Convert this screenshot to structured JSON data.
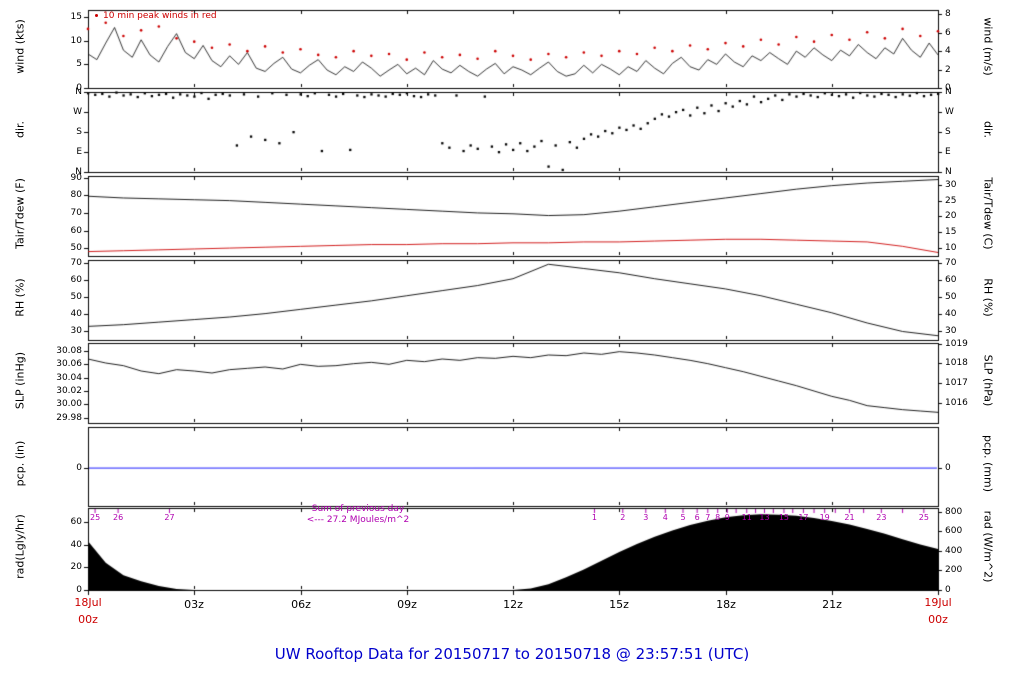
{
  "title": "UW Rooftop Data for 20150717  to  20150718 @ 23:57:51  (UTC)",
  "annotations": {
    "peak_note": "10 min peak winds in red",
    "sum_prev_line1": "Sum of previous day",
    "sum_prev_line2": "<--- 27.2 MJoules/m^2"
  },
  "x_axis": {
    "ticks": [
      "03z",
      "06z",
      "09z",
      "12z",
      "15z",
      "18z",
      "21z"
    ],
    "start_day": "18Jul",
    "start_hour": "00z",
    "end_day": "19Jul",
    "end_hour": "00z"
  },
  "colors": {
    "trace": "#000000",
    "peak_red": "#cc0000",
    "tdew_red": "#cc0000",
    "pcp_blue": "#0000ff",
    "rad_fill": "#000000",
    "marks_magenta": "#b000b0",
    "title_blue": "#0000cc",
    "date_red": "#cc0000"
  },
  "chart_data": {
    "type": "line",
    "x_range_hours": [
      0,
      24
    ],
    "panels": [
      {
        "name": "wind",
        "left_label": "wind (kts)",
        "right_label": "wind (m/s)",
        "ylim": [
          0,
          16.5
        ],
        "left_ticks": [
          {
            "v": 0,
            "label": "0"
          },
          {
            "v": 5,
            "label": "5"
          },
          {
            "v": 10,
            "label": "10"
          },
          {
            "v": 15,
            "label": "15"
          }
        ],
        "right_ticks": [
          {
            "v": 0,
            "label": "0"
          },
          {
            "v": 3.89,
            "label": "2"
          },
          {
            "v": 7.78,
            "label": "4"
          },
          {
            "v": 11.66,
            "label": "6"
          },
          {
            "v": 15.55,
            "label": "8"
          }
        ]
      },
      {
        "name": "dir",
        "left_label": "dir.",
        "right_label": "dir.",
        "ylim": [
          0,
          360
        ],
        "left_ticks": [
          {
            "v": 0,
            "label": "N"
          },
          {
            "v": 90,
            "label": "E"
          },
          {
            "v": 180,
            "label": "S"
          },
          {
            "v": 270,
            "label": "W"
          },
          {
            "v": 360,
            "label": "N"
          }
        ],
        "right_ticks": [
          {
            "v": 0,
            "label": "N"
          },
          {
            "v": 90,
            "label": "E"
          },
          {
            "v": 180,
            "label": "S"
          },
          {
            "v": 270,
            "label": "W"
          },
          {
            "v": 360,
            "label": "N"
          }
        ]
      },
      {
        "name": "temp",
        "left_label": "Tair/Tdew (F)",
        "right_label": "Tair/Tdew (C)",
        "ylim": [
          45.5,
          91
        ],
        "left_ticks": [
          {
            "v": 50,
            "label": "50"
          },
          {
            "v": 60,
            "label": "60"
          },
          {
            "v": 70,
            "label": "70"
          },
          {
            "v": 80,
            "label": "80"
          },
          {
            "v": 90,
            "label": "90"
          }
        ],
        "right_ticks": [
          {
            "v": 50,
            "label": "10"
          },
          {
            "v": 59,
            "label": "15"
          },
          {
            "v": 68,
            "label": "20"
          },
          {
            "v": 77,
            "label": "25"
          },
          {
            "v": 86,
            "label": "30"
          }
        ]
      },
      {
        "name": "rh",
        "left_label": "RH (%)",
        "right_label": "RH (%)",
        "ylim": [
          25,
          72
        ],
        "left_ticks": [
          {
            "v": 30,
            "label": "30"
          },
          {
            "v": 40,
            "label": "40"
          },
          {
            "v": 50,
            "label": "50"
          },
          {
            "v": 60,
            "label": "60"
          },
          {
            "v": 70,
            "label": "70"
          }
        ],
        "right_ticks": [
          {
            "v": 30,
            "label": "30"
          },
          {
            "v": 40,
            "label": "40"
          },
          {
            "v": 50,
            "label": "50"
          },
          {
            "v": 60,
            "label": "60"
          },
          {
            "v": 70,
            "label": "70"
          }
        ]
      },
      {
        "name": "slp",
        "left_label": "SLP (inHg)",
        "right_label": "SLP (hPa)",
        "ylim": [
          29.972,
          30.092
        ],
        "left_ticks": [
          {
            "v": 29.98,
            "label": "29.98"
          },
          {
            "v": 30.0,
            "label": "30.00"
          },
          {
            "v": 30.02,
            "label": "30.02"
          },
          {
            "v": 30.04,
            "label": "30.04"
          },
          {
            "v": 30.06,
            "label": "30.06"
          },
          {
            "v": 30.08,
            "label": "30.08"
          }
        ],
        "right_ticks": [
          {
            "v": 30.0025,
            "label": "1016"
          },
          {
            "v": 30.032,
            "label": "1017"
          },
          {
            "v": 30.0615,
            "label": "1018"
          },
          {
            "v": 30.0911,
            "label": "1019"
          }
        ]
      },
      {
        "name": "pcp",
        "left_label": "pcp. (in)",
        "right_label": "pcp. (mm)",
        "ylim": [
          -0.48,
          0.52
        ],
        "left_ticks": [
          {
            "v": 0,
            "label": "0"
          }
        ],
        "right_ticks": [
          {
            "v": 0,
            "label": "0"
          }
        ]
      },
      {
        "name": "rad",
        "left_label": "rad(Lgly/hr)",
        "right_label": "rad (W/m^2)",
        "ylim": [
          0,
          840
        ],
        "left_ticks": [
          {
            "v": 0,
            "label": "0"
          },
          {
            "v": 232.6,
            "label": "20"
          },
          {
            "v": 465.2,
            "label": "40"
          },
          {
            "v": 697.8,
            "label": "60"
          }
        ],
        "right_ticks": [
          {
            "v": 0,
            "label": "0"
          },
          {
            "v": 200,
            "label": "200"
          },
          {
            "v": 400,
            "label": "400"
          },
          {
            "v": 600,
            "label": "600"
          },
          {
            "v": 800,
            "label": "800"
          }
        ]
      }
    ],
    "series": {
      "wind_speed_kts": {
        "t0": 0,
        "dt": 0.25,
        "values": [
          7.2,
          6.0,
          9.5,
          12.8,
          8.0,
          6.5,
          10.2,
          7.0,
          5.5,
          8.8,
          11.5,
          7.5,
          6.2,
          9.0,
          5.8,
          4.5,
          6.8,
          5.0,
          7.5,
          4.2,
          3.5,
          5.2,
          6.5,
          4.0,
          3.2,
          4.8,
          6.0,
          3.8,
          2.8,
          4.5,
          3.5,
          5.5,
          4.2,
          2.5,
          3.8,
          5.0,
          3.0,
          4.2,
          2.8,
          5.8,
          4.0,
          3.2,
          4.8,
          3.5,
          2.5,
          4.0,
          5.2,
          3.0,
          4.5,
          3.8,
          2.8,
          4.2,
          5.5,
          3.5,
          2.5,
          3.0,
          4.8,
          3.2,
          5.0,
          4.0,
          2.8,
          4.5,
          3.5,
          5.8,
          4.2,
          3.0,
          5.2,
          6.5,
          4.5,
          3.8,
          6.0,
          5.0,
          7.2,
          5.5,
          4.5,
          6.8,
          5.8,
          7.5,
          6.2,
          5.0,
          7.8,
          6.5,
          8.5,
          7.0,
          5.8,
          8.0,
          6.8,
          9.2,
          7.5,
          6.2,
          8.5,
          7.2,
          10.5,
          8.0,
          6.5,
          9.5,
          7.0
        ]
      },
      "wind_peaks_kts": {
        "t0": 0,
        "dt": 0.5,
        "values": [
          12.5,
          13.8,
          11.0,
          12.2,
          13.0,
          10.5,
          9.8,
          8.5,
          9.2,
          7.8,
          8.8,
          7.5,
          8.2,
          7.0,
          6.5,
          7.8,
          6.8,
          7.2,
          6.0,
          7.5,
          6.5,
          7.0,
          6.2,
          7.8,
          6.8,
          6.0,
          7.2,
          6.5,
          7.5,
          6.8,
          7.8,
          7.2,
          8.5,
          7.8,
          9.0,
          8.2,
          9.5,
          8.8,
          10.2,
          9.2,
          10.8,
          9.8,
          11.2,
          10.2,
          11.8,
          10.5,
          12.5,
          11.0,
          12.0
        ]
      },
      "direction_deg": {
        "t0": 0,
        "dt": 0.2,
        "values": [
          355,
          348,
          352,
          340,
          358,
          345,
          350,
          338,
          355,
          342,
          348,
          352,
          335,
          350,
          345,
          340,
          356,
          330,
          348,
          352,
          345,
          120,
          350,
          160,
          340,
          145,
          355,
          130,
          348,
          180,
          350,
          342,
          355,
          95,
          348,
          340,
          352,
          100,
          345,
          338,
          350,
          345,
          340,
          352,
          348,
          355,
          342,
          338,
          350,
          345,
          130,
          110,
          345,
          95,
          120,
          105,
          340,
          115,
          90,
          125,
          100,
          130,
          95,
          115,
          140,
          25,
          120,
          10,
          135,
          110,
          150,
          170,
          160,
          185,
          175,
          200,
          190,
          210,
          195,
          220,
          240,
          260,
          250,
          270,
          280,
          255,
          290,
          265,
          300,
          275,
          310,
          295,
          320,
          305,
          340,
          315,
          330,
          345,
          325,
          350,
          340,
          352,
          345,
          338,
          355,
          348,
          342,
          350,
          335,
          356,
          345,
          340,
          352,
          348,
          338,
          350,
          344,
          356,
          342,
          348,
          352
        ]
      },
      "tair_f": {
        "t0": 0,
        "dt": 1,
        "values": [
          79.5,
          78.5,
          78.0,
          77.5,
          77.0,
          76.0,
          75.0,
          74.0,
          73.0,
          72.0,
          71.0,
          70.0,
          69.5,
          68.5,
          69.0,
          71.0,
          73.5,
          76.0,
          78.5,
          81.0,
          83.5,
          85.5,
          87.0,
          88.0,
          89.0
        ]
      },
      "tdew_f": {
        "t0": 0,
        "dt": 1,
        "values": [
          48.0,
          48.5,
          49.0,
          49.5,
          50.0,
          50.5,
          51.0,
          51.5,
          52.0,
          52.0,
          52.5,
          52.5,
          53.0,
          53.0,
          53.5,
          53.5,
          54.0,
          54.5,
          55.0,
          55.0,
          54.5,
          54.0,
          53.5,
          51.0,
          47.5
        ]
      },
      "rh_pct": {
        "t0": 0,
        "dt": 1,
        "values": [
          33,
          34,
          35.5,
          37,
          38.5,
          40.5,
          43,
          45.5,
          48,
          51,
          54,
          57,
          61,
          69.5,
          67,
          64.5,
          61,
          58,
          55,
          51,
          46,
          41,
          35,
          30,
          27.5
        ]
      },
      "slp_inhg": {
        "t0": 0,
        "dt": 0.5,
        "values": [
          30.068,
          30.062,
          30.058,
          30.05,
          30.046,
          30.052,
          30.05,
          30.047,
          30.052,
          30.054,
          30.056,
          30.053,
          30.06,
          30.057,
          30.058,
          30.061,
          30.063,
          30.06,
          30.066,
          30.064,
          30.068,
          30.066,
          30.07,
          30.069,
          30.072,
          30.07,
          30.074,
          30.073,
          30.077,
          30.075,
          30.079,
          30.077,
          30.074,
          30.07,
          30.066,
          30.061,
          30.055,
          30.049,
          30.042,
          30.035,
          30.028,
          30.02,
          30.012,
          30.006,
          29.998,
          29.995,
          29.992,
          29.99,
          29.988
        ]
      },
      "pcp_in": {
        "constant": 0
      },
      "rad_wm2": {
        "t0": 0,
        "dt": 0.5,
        "values": [
          500,
          280,
          150,
          90,
          40,
          10,
          0,
          0,
          0,
          0,
          0,
          0,
          0,
          0,
          0,
          0,
          0,
          0,
          0,
          0,
          0,
          0,
          0,
          0,
          0,
          15,
          60,
          130,
          210,
          300,
          390,
          470,
          545,
          610,
          665,
          710,
          745,
          765,
          775,
          772,
          760,
          738,
          708,
          670,
          625,
          575,
          520,
          465,
          420
        ]
      },
      "rad_sum_marks": [
        {
          "label": "25",
          "t": 0.2
        },
        {
          "label": "26",
          "t": 0.85
        },
        {
          "label": "27",
          "t": 2.3
        },
        {
          "label": "1",
          "t": 14.3
        },
        {
          "label": "2",
          "t": 15.1
        },
        {
          "label": "3",
          "t": 15.75
        },
        {
          "label": "4",
          "t": 16.3
        },
        {
          "label": "5",
          "t": 16.8
        },
        {
          "label": "6",
          "t": 17.2
        },
        {
          "label": "7",
          "t": 17.5
        },
        {
          "label": "8",
          "t": 17.78
        },
        {
          "label": "9",
          "t": 18.05
        },
        {
          "label": "",
          "t": 18.3
        },
        {
          "label": "11",
          "t": 18.6
        },
        {
          "label": "",
          "t": 18.85
        },
        {
          "label": "13",
          "t": 19.1
        },
        {
          "label": "",
          "t": 19.35
        },
        {
          "label": "15",
          "t": 19.65
        },
        {
          "label": "",
          "t": 19.9
        },
        {
          "label": "17",
          "t": 20.2
        },
        {
          "label": "",
          "t": 20.5
        },
        {
          "label": "19",
          "t": 20.8
        },
        {
          "label": "",
          "t": 21.1
        },
        {
          "label": "21",
          "t": 21.5
        },
        {
          "label": "",
          "t": 21.9
        },
        {
          "label": "23",
          "t": 22.4
        },
        {
          "label": "",
          "t": 23.0
        },
        {
          "label": "25",
          "t": 23.6
        }
      ]
    }
  }
}
